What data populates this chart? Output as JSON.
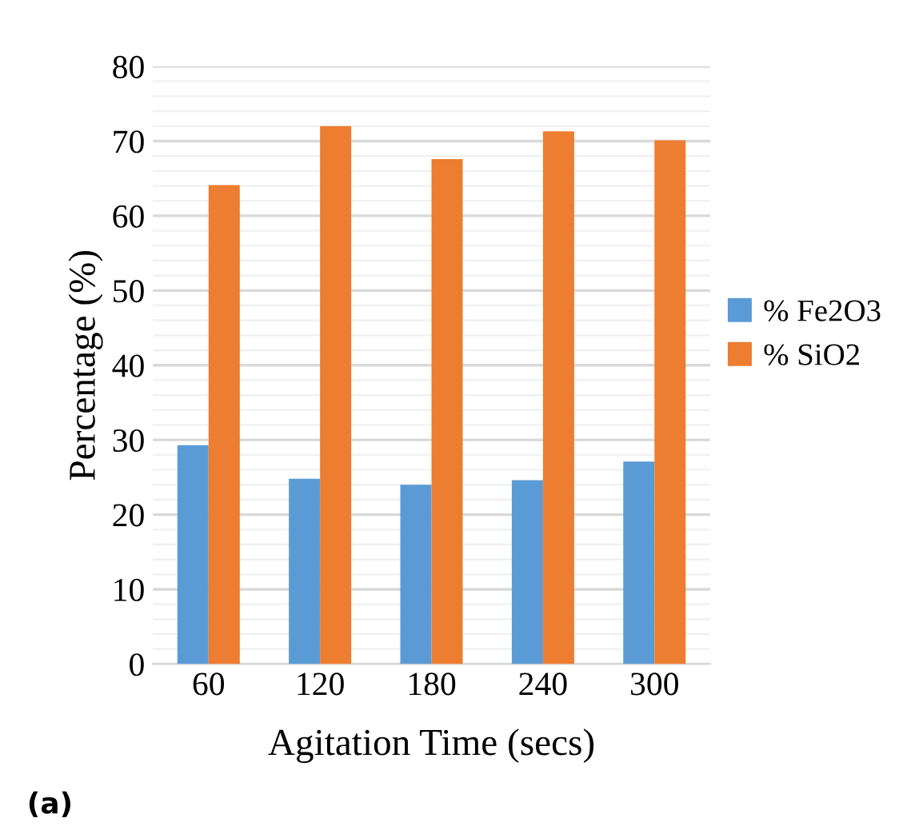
{
  "chart_data": {
    "type": "bar",
    "xlabel": "Agitation Time (secs)",
    "ylabel": "Percentage (%)",
    "categories": [
      "60",
      "120",
      "180",
      "240",
      "300"
    ],
    "series": [
      {
        "name": "% Fe2O3",
        "color": "#5b9bd5",
        "values": [
          29.3,
          24.8,
          24.0,
          24.6,
          27.1
        ]
      },
      {
        "name": "% SiO2",
        "color": "#ed7d31",
        "values": [
          64.1,
          72.0,
          67.6,
          71.3,
          70.1
        ]
      }
    ],
    "ylim": [
      0,
      80
    ],
    "yticks": [
      0,
      {
        "value": 2,
        "label": null
      },
      {
        "value": 4,
        "label": null
      },
      {
        "value": 6,
        "label": null
      },
      {
        "value": 8,
        "label": null
      },
      10,
      {
        "value": 12,
        "label": null
      },
      {
        "value": 14,
        "label": null
      },
      {
        "value": 16,
        "label": null
      },
      {
        "value": 18,
        "label": null
      },
      20,
      {
        "value": 22,
        "label": null
      },
      {
        "value": 24,
        "label": null
      },
      {
        "value": 26,
        "label": null
      },
      {
        "value": 28,
        "label": null
      },
      30,
      {
        "value": 32,
        "label": null
      },
      {
        "value": 34,
        "label": null
      },
      {
        "value": 36,
        "label": null
      },
      {
        "value": 38,
        "label": null
      },
      40,
      {
        "value": 42,
        "label": null
      },
      {
        "value": 44,
        "label": null
      },
      {
        "value": 46,
        "label": null
      },
      {
        "value": 48,
        "label": null
      },
      50,
      {
        "value": 52,
        "label": null
      },
      {
        "value": 54,
        "label": null
      },
      {
        "value": 56,
        "label": null
      },
      {
        "value": 58,
        "label": null
      },
      60,
      {
        "value": 62,
        "label": null
      },
      {
        "value": 64,
        "label": null
      },
      {
        "value": 66,
        "label": null
      },
      {
        "value": 68,
        "label": null
      },
      70,
      {
        "value": 72,
        "label": null
      },
      {
        "value": 74,
        "label": null
      },
      {
        "value": 76,
        "label": null
      },
      {
        "value": 78,
        "label": null
      },
      80
    ],
    "grid": "y",
    "legend": "right",
    "annotations": [
      "(a)"
    ]
  }
}
